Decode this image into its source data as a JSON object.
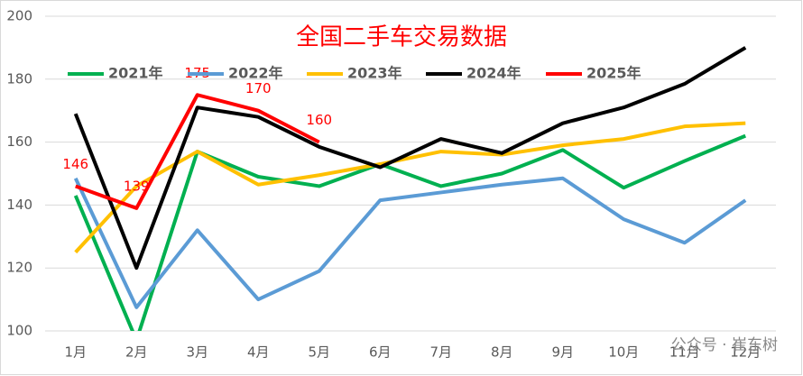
{
  "chart_data": {
    "type": "line",
    "title": "全国二手车交易数据",
    "categories": [
      "1月",
      "2月",
      "3月",
      "4月",
      "5月",
      "6月",
      "7月",
      "8月",
      "9月",
      "10月",
      "11月",
      "12月"
    ],
    "series": [
      {
        "name": "2021年",
        "color": "#00b050",
        "values": [
          143,
          97,
          157,
          149,
          146,
          153,
          146,
          150,
          157.5,
          145.5,
          154,
          162
        ]
      },
      {
        "name": "2022年",
        "color": "#5b9bd5",
        "values": [
          148.5,
          107.5,
          132,
          110,
          119,
          141.5,
          144,
          146.5,
          148.5,
          135.5,
          128,
          141.5
        ]
      },
      {
        "name": "2023年",
        "color": "#ffc000",
        "values": [
          125,
          146,
          157,
          146.5,
          149.5,
          153,
          157,
          156,
          159,
          161,
          165,
          166
        ]
      },
      {
        "name": "2024年",
        "color": "#000000",
        "values": [
          169,
          120,
          171,
          168,
          158.5,
          152,
          161,
          156.5,
          166,
          171,
          178.5,
          190
        ]
      },
      {
        "name": "2025年",
        "color": "#ff0000",
        "values": [
          146,
          139,
          175,
          170,
          160,
          null,
          null,
          null,
          null,
          null,
          null,
          null
        ],
        "labels": true
      }
    ],
    "ylim": [
      100,
      200
    ],
    "yticks": [
      100,
      120,
      140,
      160,
      180,
      200
    ],
    "grid": true,
    "watermark": "公众号 · 崔东树"
  }
}
